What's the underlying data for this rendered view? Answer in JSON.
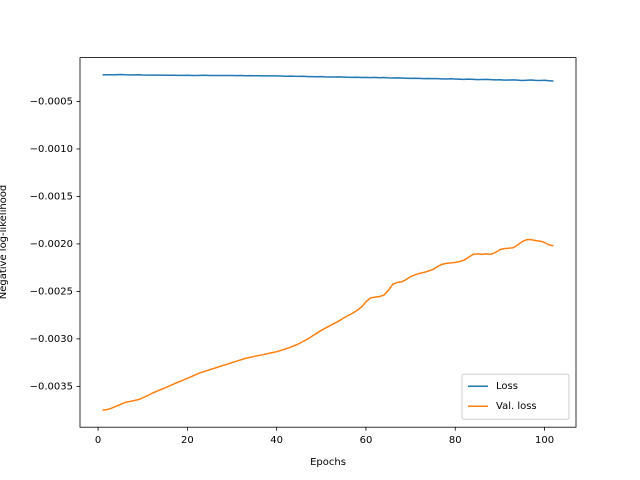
{
  "chart_data": {
    "type": "line",
    "x_label": "Epochs",
    "y_label": "Negative log-likelihood",
    "x": [
      1,
      2,
      3,
      4,
      5,
      6,
      7,
      8,
      9,
      10,
      11,
      12,
      13,
      14,
      15,
      16,
      17,
      18,
      19,
      20,
      21,
      22,
      23,
      24,
      25,
      26,
      27,
      28,
      29,
      30,
      31,
      32,
      33,
      34,
      35,
      36,
      37,
      38,
      39,
      40,
      41,
      42,
      43,
      44,
      45,
      46,
      47,
      48,
      49,
      50,
      51,
      52,
      53,
      54,
      55,
      56,
      57,
      58,
      59,
      60,
      61,
      62,
      63,
      64,
      65,
      66,
      67,
      68,
      69,
      70,
      71,
      72,
      73,
      74,
      75,
      76,
      77,
      78,
      79,
      80,
      81,
      82,
      83,
      84,
      85,
      86,
      87,
      88,
      89,
      90,
      91,
      92,
      93,
      94,
      95,
      96,
      97,
      98,
      99,
      100,
      101,
      102
    ],
    "series": [
      {
        "name": "Loss",
        "color": "#1f77b4",
        "values": [
          -0.00022,
          -0.000219,
          -0.000218,
          -0.000218,
          -0.000216,
          -0.000219,
          -0.000221,
          -0.00022,
          -0.000219,
          -0.000221,
          -0.000222,
          -0.000222,
          -0.000223,
          -0.000223,
          -0.000224,
          -0.000224,
          -0.000224,
          -0.000225,
          -0.000225,
          -0.000224,
          -0.000226,
          -0.000227,
          -0.000225,
          -0.000224,
          -0.000226,
          -0.000227,
          -0.000226,
          -0.000227,
          -0.000227,
          -0.000227,
          -0.000228,
          -0.000227,
          -0.000229,
          -0.000228,
          -0.000229,
          -0.000229,
          -0.00023,
          -0.00023,
          -0.00023,
          -0.00023,
          -0.000232,
          -0.000235,
          -0.000233,
          -0.000235,
          -0.000236,
          -0.000235,
          -0.000238,
          -0.000238,
          -0.000239,
          -0.000238,
          -0.000241,
          -0.000242,
          -0.000242,
          -0.000241,
          -0.000243,
          -0.000245,
          -0.000246,
          -0.000245,
          -0.000248,
          -0.000246,
          -0.000249,
          -0.000246,
          -0.00025,
          -0.000248,
          -0.000252,
          -0.000253,
          -0.000251,
          -0.000253,
          -0.000255,
          -0.000257,
          -0.000255,
          -0.000257,
          -0.00026,
          -0.000258,
          -0.00026,
          -0.000259,
          -0.000262,
          -0.000264,
          -0.000261,
          -0.000264,
          -0.000266,
          -0.000267,
          -0.000265,
          -0.000267,
          -0.00027,
          -0.000268,
          -0.000267,
          -0.00027,
          -0.000273,
          -0.000271,
          -0.000275,
          -0.000274,
          -0.000272,
          -0.000275,
          -0.000279,
          -0.000276,
          -0.000274,
          -0.000278,
          -0.000279,
          -0.000277,
          -0.000282,
          -0.000284
        ]
      },
      {
        "name": "Val. loss",
        "color": "#ff7f0e",
        "values": [
          -0.00375,
          -0.003745,
          -0.00373,
          -0.00371,
          -0.00369,
          -0.00367,
          -0.00366,
          -0.00365,
          -0.00364,
          -0.00362,
          -0.0036,
          -0.003575,
          -0.003555,
          -0.003535,
          -0.003515,
          -0.003495,
          -0.003475,
          -0.003455,
          -0.003435,
          -0.003415,
          -0.003395,
          -0.003375,
          -0.003355,
          -0.00334,
          -0.003325,
          -0.00331,
          -0.003295,
          -0.00328,
          -0.003265,
          -0.00325,
          -0.003235,
          -0.00322,
          -0.003205,
          -0.003195,
          -0.003185,
          -0.003175,
          -0.003165,
          -0.003155,
          -0.003145,
          -0.003135,
          -0.00312,
          -0.003105,
          -0.00309,
          -0.00307,
          -0.00305,
          -0.003025,
          -0.003,
          -0.00297,
          -0.00294,
          -0.00291,
          -0.002885,
          -0.00286,
          -0.002835,
          -0.00281,
          -0.00278,
          -0.002755,
          -0.00273,
          -0.0027,
          -0.002665,
          -0.00261,
          -0.00257,
          -0.00256,
          -0.002555,
          -0.00254,
          -0.00249,
          -0.002425,
          -0.002405,
          -0.0024,
          -0.002375,
          -0.002345,
          -0.002325,
          -0.00231,
          -0.0023,
          -0.002285,
          -0.00227,
          -0.00224,
          -0.002215,
          -0.002205,
          -0.0022,
          -0.002195,
          -0.002185,
          -0.00217,
          -0.00214,
          -0.00211,
          -0.002105,
          -0.00211,
          -0.002105,
          -0.00211,
          -0.00209,
          -0.00206,
          -0.00205,
          -0.002045,
          -0.00204,
          -0.00201,
          -0.001975,
          -0.001955,
          -0.001955,
          -0.001965,
          -0.00197,
          -0.001985,
          -0.00201,
          -0.00202
        ]
      }
    ],
    "xlim": [
      -4.05,
      107.05
    ],
    "xticks": [
      0,
      20,
      40,
      60,
      80,
      100
    ],
    "ylim": [
      -0.00393,
      -3.8e-05
    ],
    "yticks": [
      {
        "value": -0.0035,
        "label": "−0.0035"
      },
      {
        "value": -0.003,
        "label": "−0.0030"
      },
      {
        "value": -0.0025,
        "label": "−0.0025"
      },
      {
        "value": -0.002,
        "label": "−0.0020"
      },
      {
        "value": -0.0015,
        "label": "−0.0015"
      },
      {
        "value": -0.001,
        "label": "−0.0010"
      },
      {
        "value": -0.0005,
        "label": "−0.0005"
      }
    ],
    "legend": "lower right",
    "grid": false
  }
}
